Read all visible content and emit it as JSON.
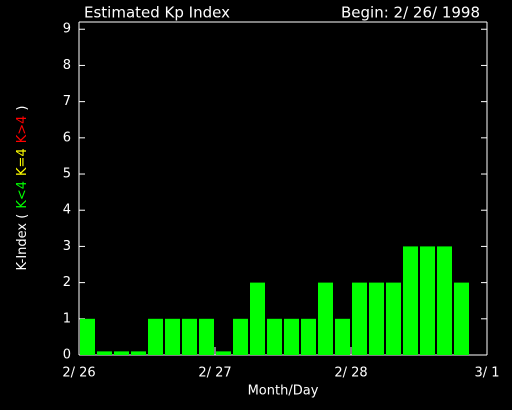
{
  "chart_data": {
    "type": "bar",
    "title": "Estimated Kp Index",
    "subtitle": "Begin: 2/ 26/ 1998",
    "x_label": "Month/Day",
    "y_label": [
      {
        "text": "K-Index (",
        "color": "#ffffff"
      },
      {
        "text": "K<4",
        "color": "#00ff00"
      },
      {
        "text": "K=4",
        "color": "#ffff00"
      },
      {
        "text": "K>4",
        "color": "#ff0000"
      },
      {
        "text": ")",
        "color": "#ffffff"
      }
    ],
    "x": [
      0,
      0.125,
      0.25,
      0.375,
      0.5,
      0.625,
      0.75,
      0.875,
      1,
      1.125,
      1.25,
      1.375,
      1.5,
      1.625,
      1.75,
      1.875,
      2,
      2.125,
      2.25,
      2.375,
      2.5,
      2.625,
      2.75,
      2.875
    ],
    "bar_width": 0.125,
    "series": [
      {
        "name": "Kp",
        "color": "#00ff00",
        "values": [
          1,
          0.1,
          0.1,
          0.1,
          1,
          1,
          1,
          1,
          0.1,
          1,
          2,
          1,
          1,
          1,
          2,
          1,
          2,
          2,
          2,
          3,
          3,
          3,
          2,
          null
        ]
      }
    ],
    "xlim": [
      0,
      3
    ],
    "xticks": [
      {
        "value": 0,
        "label": "2/ 26"
      },
      {
        "value": 1,
        "label": "2/ 27"
      },
      {
        "value": 2,
        "label": "2/ 28"
      },
      {
        "value": 3,
        "label": "3/ 1"
      }
    ],
    "ylim": [
      0,
      9.2
    ],
    "yticks": [
      0,
      1,
      2,
      3,
      4,
      5,
      6,
      7,
      8,
      9
    ],
    "grid": false
  }
}
